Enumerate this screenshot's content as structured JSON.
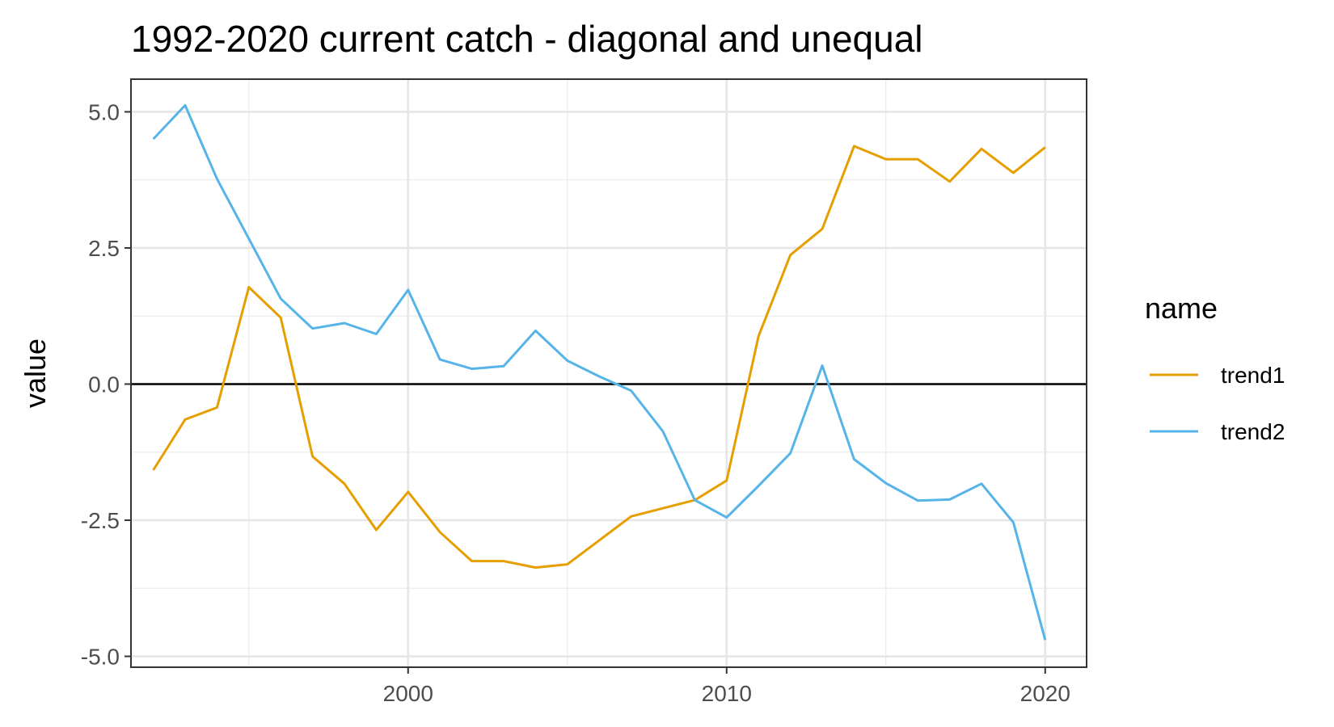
{
  "chart_data": {
    "type": "line",
    "title": "1992-2020 current catch - diagonal and unequal",
    "xlabel": "",
    "ylabel": "value",
    "xlim": [
      1991.3,
      2021.3
    ],
    "ylim": [
      -5.2,
      5.6
    ],
    "x_ticks": [
      2000,
      2010,
      2020
    ],
    "x_tick_labels": [
      "2000",
      "2010",
      "2020"
    ],
    "x_minor_ticks": [
      1995,
      2005,
      2015
    ],
    "y_ticks": [
      5.0,
      2.5,
      0.0,
      -2.5,
      -5.0
    ],
    "y_tick_labels": [
      "5.0",
      "2.5",
      "0.0",
      "-2.5",
      "-5.0"
    ],
    "y_minor_ticks": [
      3.75,
      1.25,
      -1.25,
      -3.75
    ],
    "reference_line_y": 0,
    "grid": true,
    "legend": {
      "title": "name",
      "position": "right"
    },
    "x": [
      1992,
      1993,
      1994,
      1995,
      1996,
      1997,
      1998,
      1999,
      2000,
      2001,
      2002,
      2003,
      2004,
      2005,
      2006,
      2007,
      2008,
      2009,
      2010,
      2011,
      2012,
      2013,
      2014,
      2015,
      2016,
      2017,
      2018,
      2019,
      2020
    ],
    "series": [
      {
        "name": "trend1",
        "color": "#E69F00",
        "values": [
          -1.58,
          -0.65,
          -0.43,
          1.78,
          1.22,
          -1.33,
          -1.83,
          -2.68,
          -1.98,
          -2.72,
          -3.25,
          -3.25,
          -3.37,
          -3.31,
          -2.87,
          -2.43,
          -2.28,
          -2.13,
          -1.77,
          0.88,
          2.37,
          2.85,
          4.37,
          4.13,
          4.13,
          3.72,
          4.32,
          3.88,
          4.35
        ]
      },
      {
        "name": "trend2",
        "color": "#56B4E9",
        "values": [
          4.5,
          5.12,
          3.77,
          2.67,
          1.57,
          1.02,
          1.12,
          0.92,
          1.73,
          0.45,
          0.28,
          0.33,
          0.98,
          0.43,
          0.14,
          -0.12,
          -0.87,
          -2.13,
          -2.45,
          -1.87,
          -1.27,
          0.34,
          -1.38,
          -1.82,
          -2.14,
          -2.12,
          -1.83,
          -2.54,
          -4.7
        ]
      }
    ]
  }
}
